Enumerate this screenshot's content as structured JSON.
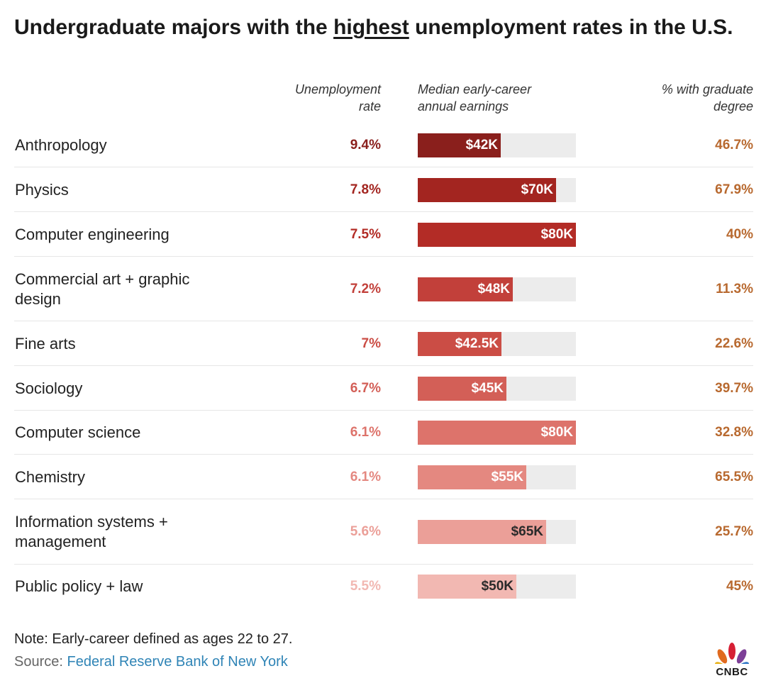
{
  "title": {
    "before": "Undergraduate majors with the ",
    "highlight": "highest",
    "after": " unemployment rates in the U.S."
  },
  "headers": {
    "rate": [
      "Unemployment",
      "rate"
    ],
    "earnings": [
      "Median early-career",
      "annual earnings"
    ],
    "grad": [
      "% with graduate",
      "degree"
    ]
  },
  "colors": {
    "title": "#1a1a1a",
    "grad_text": "#b8692f",
    "track": "#ececec",
    "link": "#2f84b6",
    "shades": [
      "#8a1f1c",
      "#a32520",
      "#b32c26",
      "#c2403a",
      "#cb4d45",
      "#d35f57",
      "#dd736b",
      "#e48880",
      "#eb9f98",
      "#f2b8b2"
    ],
    "rate_text": [
      "#8a1f1c",
      "#a32520",
      "#b32c26",
      "#c2403a",
      "#cb4d45",
      "#d35f57",
      "#dd736b",
      "#e48880",
      "#eb9f98",
      "#f2b8b2"
    ]
  },
  "chart_data": {
    "type": "table",
    "title": "Undergraduate majors with the highest unemployment rates in the U.S.",
    "columns": [
      "Unemployment rate",
      "Median early-career annual earnings",
      "% with graduate degree"
    ],
    "earnings_max": 80,
    "rows": [
      {
        "major": "Anthropology",
        "rate": "9.4%",
        "earnings": 42,
        "earnings_label": "$42K",
        "grad": "46.7%"
      },
      {
        "major": "Physics",
        "rate": "7.8%",
        "earnings": 70,
        "earnings_label": "$70K",
        "grad": "67.9%"
      },
      {
        "major": "Computer engineering",
        "rate": "7.5%",
        "earnings": 80,
        "earnings_label": "$80K",
        "grad": "40%"
      },
      {
        "major": "Commercial art + graphic design",
        "rate": "7.2%",
        "earnings": 48,
        "earnings_label": "$48K",
        "grad": "11.3%"
      },
      {
        "major": "Fine arts",
        "rate": "7%",
        "earnings": 42.5,
        "earnings_label": "$42.5K",
        "grad": "22.6%"
      },
      {
        "major": "Sociology",
        "rate": "6.7%",
        "earnings": 45,
        "earnings_label": "$45K",
        "grad": "39.7%"
      },
      {
        "major": "Computer science",
        "rate": "6.1%",
        "earnings": 80,
        "earnings_label": "$80K",
        "grad": "32.8%"
      },
      {
        "major": "Chemistry",
        "rate": "6.1%",
        "earnings": 55,
        "earnings_label": "$55K",
        "grad": "65.5%"
      },
      {
        "major": "Information systems + management",
        "rate": "5.6%",
        "earnings": 65,
        "earnings_label": "$65K",
        "grad": "25.7%"
      },
      {
        "major": "Public policy + law",
        "rate": "5.5%",
        "earnings": 50,
        "earnings_label": "$50K",
        "grad": "45%"
      }
    ]
  },
  "footer": {
    "note": "Note: Early-career defined as ages 22 to 27.",
    "source_label": "Source: ",
    "source_link": "Federal Reserve Bank of New York",
    "logo_text": "CNBC"
  }
}
